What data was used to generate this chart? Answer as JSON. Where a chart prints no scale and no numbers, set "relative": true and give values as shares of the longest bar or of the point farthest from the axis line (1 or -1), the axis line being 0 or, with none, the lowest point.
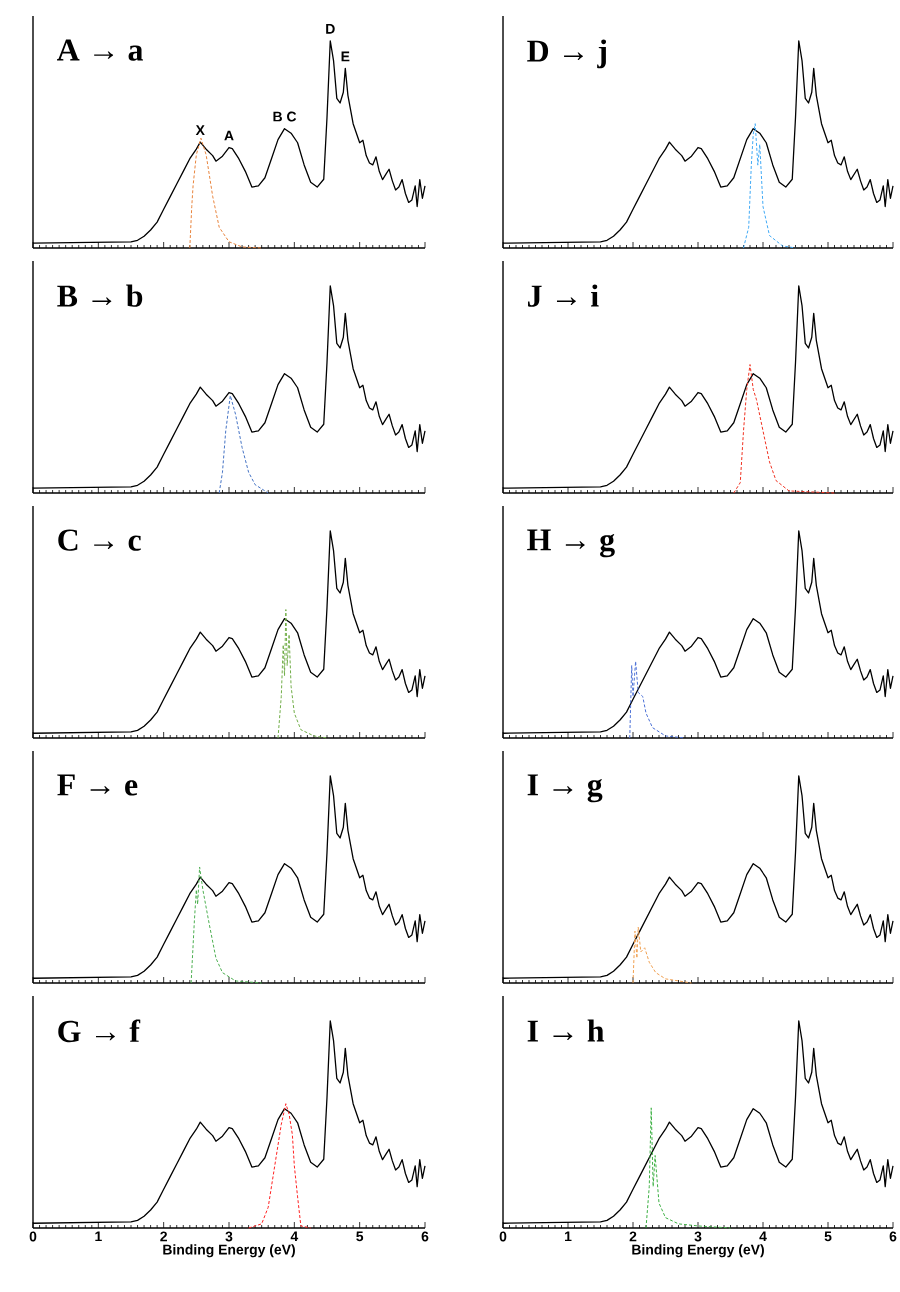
{
  "chart_data": [
    {
      "type": "line",
      "title": "A → a",
      "relative": true,
      "xlim": [
        0,
        6
      ],
      "xticks": [
        0,
        1,
        2,
        3,
        4,
        5,
        6
      ],
      "tick_labels": false,
      "marker": "none",
      "annotations": [
        {
          "text": "X",
          "x": 2.56,
          "y": 0.511
        },
        {
          "text": "A",
          "x": 3.0,
          "y": 0.485
        },
        {
          "text": "B C",
          "x": 3.85,
          "y": 0.576
        },
        {
          "text": "D",
          "x": 4.55,
          "y": 1.0
        },
        {
          "text": "E",
          "x": 4.78,
          "y": 0.867
        }
      ],
      "series": [
        {
          "color": "#000000",
          "line_style": "solid",
          "x": [
            0,
            1.5,
            1.6,
            1.7,
            1.8,
            1.9,
            2.0,
            2.1,
            2.2,
            2.3,
            2.4,
            2.5,
            2.56,
            2.65,
            2.75,
            2.8,
            2.9,
            3.0,
            3.05,
            3.15,
            3.25,
            3.35,
            3.45,
            3.55,
            3.65,
            3.75,
            3.85,
            3.95,
            4.05,
            4.15,
            4.25,
            4.35,
            4.45,
            4.5,
            4.55,
            4.6,
            4.65,
            4.7,
            4.75,
            4.78,
            4.82,
            4.9,
            5.0,
            5.05,
            5.1,
            5.15,
            5.2,
            5.25,
            5.3,
            5.35,
            5.4,
            5.45,
            5.5,
            5.55,
            5.6,
            5.65,
            5.7,
            5.75,
            5.8,
            5.85,
            5.88,
            5.92,
            5.96,
            6.0
          ],
          "values": [
            0.023,
            0.03,
            0.037,
            0.057,
            0.087,
            0.125,
            0.187,
            0.248,
            0.309,
            0.37,
            0.431,
            0.477,
            0.511,
            0.477,
            0.446,
            0.419,
            0.443,
            0.485,
            0.48,
            0.431,
            0.37,
            0.294,
            0.3,
            0.339,
            0.431,
            0.523,
            0.576,
            0.554,
            0.508,
            0.401,
            0.317,
            0.294,
            0.332,
            0.63,
            1.0,
            0.905,
            0.722,
            0.7,
            0.752,
            0.867,
            0.737,
            0.6,
            0.508,
            0.52,
            0.446,
            0.41,
            0.401,
            0.44,
            0.37,
            0.33,
            0.355,
            0.38,
            0.324,
            0.28,
            0.294,
            0.33,
            0.263,
            0.22,
            0.232,
            0.3,
            0.2,
            0.33,
            0.24,
            0.3
          ]
        },
        {
          "color": "#e8843c",
          "line_style": "dashed",
          "x": [
            2.4,
            2.43,
            2.45,
            2.5,
            2.57,
            2.65,
            2.75,
            2.85,
            3.0,
            3.2,
            3.5
          ],
          "values": [
            0,
            0.2,
            0.3,
            0.45,
            0.53,
            0.45,
            0.25,
            0.1,
            0.03,
            0.005,
            0
          ]
        }
      ]
    },
    {
      "type": "line",
      "title": "D → j",
      "relative": true,
      "xlim": [
        0,
        6
      ],
      "xticks": [
        0,
        1,
        2,
        3,
        4,
        5,
        6
      ],
      "tick_labels": false,
      "marker": "none",
      "series": [
        {
          "color": "#000000",
          "line_style": "solid",
          "x": [
            0,
            1.5,
            1.6,
            1.7,
            1.8,
            1.9,
            2.0,
            2.1,
            2.2,
            2.3,
            2.4,
            2.5,
            2.56,
            2.65,
            2.75,
            2.8,
            2.9,
            3.0,
            3.05,
            3.15,
            3.25,
            3.35,
            3.45,
            3.55,
            3.65,
            3.75,
            3.85,
            3.95,
            4.05,
            4.15,
            4.25,
            4.35,
            4.45,
            4.5,
            4.55,
            4.6,
            4.65,
            4.7,
            4.75,
            4.78,
            4.82,
            4.9,
            5.0,
            5.05,
            5.1,
            5.15,
            5.2,
            5.25,
            5.3,
            5.35,
            5.4,
            5.45,
            5.5,
            5.55,
            5.6,
            5.65,
            5.7,
            5.75,
            5.8,
            5.85,
            5.88,
            5.92,
            5.96,
            6.0
          ],
          "values": [
            0.023,
            0.03,
            0.037,
            0.057,
            0.087,
            0.125,
            0.187,
            0.248,
            0.309,
            0.37,
            0.431,
            0.477,
            0.511,
            0.477,
            0.446,
            0.419,
            0.443,
            0.485,
            0.48,
            0.431,
            0.37,
            0.294,
            0.3,
            0.339,
            0.431,
            0.523,
            0.576,
            0.554,
            0.508,
            0.401,
            0.317,
            0.294,
            0.332,
            0.63,
            1.0,
            0.905,
            0.722,
            0.7,
            0.752,
            0.867,
            0.737,
            0.6,
            0.508,
            0.52,
            0.446,
            0.41,
            0.401,
            0.44,
            0.37,
            0.33,
            0.355,
            0.38,
            0.324,
            0.28,
            0.294,
            0.33,
            0.263,
            0.22,
            0.232,
            0.3,
            0.2,
            0.33,
            0.24,
            0.3
          ]
        },
        {
          "color": "#3fa9f5",
          "line_style": "dashed",
          "x": [
            3.7,
            3.78,
            3.82,
            3.85,
            3.88,
            3.92,
            3.95,
            4.0,
            4.1,
            4.3,
            4.5
          ],
          "values": [
            0,
            0.1,
            0.4,
            0.55,
            0.6,
            0.4,
            0.5,
            0.2,
            0.06,
            0.01,
            0
          ]
        }
      ]
    },
    {
      "type": "line",
      "title": "B → b",
      "relative": true,
      "xlim": [
        0,
        6
      ],
      "xticks": [
        0,
        1,
        2,
        3,
        4,
        5,
        6
      ],
      "tick_labels": false,
      "marker": "none",
      "series": [
        {
          "color": "#000000",
          "line_style": "solid",
          "x": [
            0,
            1.5,
            1.6,
            1.7,
            1.8,
            1.9,
            2.0,
            2.1,
            2.2,
            2.3,
            2.4,
            2.5,
            2.56,
            2.65,
            2.75,
            2.8,
            2.9,
            3.0,
            3.05,
            3.15,
            3.25,
            3.35,
            3.45,
            3.55,
            3.65,
            3.75,
            3.85,
            3.95,
            4.05,
            4.15,
            4.25,
            4.35,
            4.45,
            4.5,
            4.55,
            4.6,
            4.65,
            4.7,
            4.75,
            4.78,
            4.82,
            4.9,
            5.0,
            5.05,
            5.1,
            5.15,
            5.2,
            5.25,
            5.3,
            5.35,
            5.4,
            5.45,
            5.5,
            5.55,
            5.6,
            5.65,
            5.7,
            5.75,
            5.8,
            5.85,
            5.88,
            5.92,
            5.96,
            6.0
          ],
          "values": [
            0.023,
            0.03,
            0.037,
            0.057,
            0.087,
            0.125,
            0.187,
            0.248,
            0.309,
            0.37,
            0.431,
            0.477,
            0.511,
            0.477,
            0.446,
            0.419,
            0.443,
            0.485,
            0.48,
            0.431,
            0.37,
            0.294,
            0.3,
            0.339,
            0.431,
            0.523,
            0.576,
            0.554,
            0.508,
            0.401,
            0.317,
            0.294,
            0.332,
            0.63,
            1.0,
            0.905,
            0.722,
            0.7,
            0.752,
            0.867,
            0.737,
            0.6,
            0.508,
            0.52,
            0.446,
            0.41,
            0.401,
            0.44,
            0.37,
            0.33,
            0.355,
            0.38,
            0.324,
            0.28,
            0.294,
            0.33,
            0.263,
            0.22,
            0.232,
            0.3,
            0.2,
            0.33,
            0.24,
            0.3
          ]
        },
        {
          "color": "#4472c4",
          "line_style": "dashed",
          "x": [
            2.85,
            2.9,
            2.95,
            3.02,
            3.1,
            3.2,
            3.3,
            3.4,
            3.6
          ],
          "values": [
            0,
            0.1,
            0.3,
            0.47,
            0.38,
            0.22,
            0.1,
            0.04,
            0
          ]
        }
      ]
    },
    {
      "type": "line",
      "title": "J → i",
      "relative": true,
      "xlim": [
        0,
        6
      ],
      "xticks": [
        0,
        1,
        2,
        3,
        4,
        5,
        6
      ],
      "tick_labels": false,
      "marker": "none",
      "series": [
        {
          "color": "#000000",
          "line_style": "solid",
          "x": [
            0,
            1.5,
            1.6,
            1.7,
            1.8,
            1.9,
            2.0,
            2.1,
            2.2,
            2.3,
            2.4,
            2.5,
            2.56,
            2.65,
            2.75,
            2.8,
            2.9,
            3.0,
            3.05,
            3.15,
            3.25,
            3.35,
            3.45,
            3.55,
            3.65,
            3.75,
            3.85,
            3.95,
            4.05,
            4.15,
            4.25,
            4.35,
            4.45,
            4.5,
            4.55,
            4.6,
            4.65,
            4.7,
            4.75,
            4.78,
            4.82,
            4.9,
            5.0,
            5.05,
            5.1,
            5.15,
            5.2,
            5.25,
            5.3,
            5.35,
            5.4,
            5.45,
            5.5,
            5.55,
            5.6,
            5.65,
            5.7,
            5.75,
            5.8,
            5.85,
            5.88,
            5.92,
            5.96,
            6.0
          ],
          "values": [
            0.023,
            0.03,
            0.037,
            0.057,
            0.087,
            0.125,
            0.187,
            0.248,
            0.309,
            0.37,
            0.431,
            0.477,
            0.511,
            0.477,
            0.446,
            0.419,
            0.443,
            0.485,
            0.48,
            0.431,
            0.37,
            0.294,
            0.3,
            0.339,
            0.431,
            0.523,
            0.576,
            0.554,
            0.508,
            0.401,
            0.317,
            0.294,
            0.332,
            0.63,
            1.0,
            0.905,
            0.722,
            0.7,
            0.752,
            0.867,
            0.737,
            0.6,
            0.508,
            0.52,
            0.446,
            0.41,
            0.401,
            0.44,
            0.37,
            0.33,
            0.355,
            0.38,
            0.324,
            0.28,
            0.294,
            0.33,
            0.263,
            0.22,
            0.232,
            0.3,
            0.2,
            0.33,
            0.24,
            0.3
          ]
        },
        {
          "color": "#f03020",
          "line_style": "dashed",
          "x": [
            3.55,
            3.65,
            3.7,
            3.75,
            3.8,
            3.85,
            3.9,
            4.0,
            4.1,
            4.2,
            4.4,
            5.1
          ],
          "values": [
            0,
            0.05,
            0.3,
            0.5,
            0.62,
            0.5,
            0.45,
            0.3,
            0.15,
            0.06,
            0.01,
            0
          ]
        }
      ]
    },
    {
      "type": "line",
      "title": "C → c",
      "relative": true,
      "xlim": [
        0,
        6
      ],
      "xticks": [
        0,
        1,
        2,
        3,
        4,
        5,
        6
      ],
      "tick_labels": false,
      "marker": "none",
      "series": [
        {
          "color": "#000000",
          "line_style": "solid",
          "x": [
            0,
            1.5,
            1.6,
            1.7,
            1.8,
            1.9,
            2.0,
            2.1,
            2.2,
            2.3,
            2.4,
            2.5,
            2.56,
            2.65,
            2.75,
            2.8,
            2.9,
            3.0,
            3.05,
            3.15,
            3.25,
            3.35,
            3.45,
            3.55,
            3.65,
            3.75,
            3.85,
            3.95,
            4.05,
            4.15,
            4.25,
            4.35,
            4.45,
            4.5,
            4.55,
            4.6,
            4.65,
            4.7,
            4.75,
            4.78,
            4.82,
            4.9,
            5.0,
            5.05,
            5.1,
            5.15,
            5.2,
            5.25,
            5.3,
            5.35,
            5.4,
            5.45,
            5.5,
            5.55,
            5.6,
            5.65,
            5.7,
            5.75,
            5.8,
            5.85,
            5.88,
            5.92,
            5.96,
            6.0
          ],
          "values": [
            0.023,
            0.03,
            0.037,
            0.057,
            0.087,
            0.125,
            0.187,
            0.248,
            0.309,
            0.37,
            0.431,
            0.477,
            0.511,
            0.477,
            0.446,
            0.419,
            0.443,
            0.485,
            0.48,
            0.431,
            0.37,
            0.294,
            0.3,
            0.339,
            0.431,
            0.523,
            0.576,
            0.554,
            0.508,
            0.401,
            0.317,
            0.294,
            0.332,
            0.63,
            1.0,
            0.905,
            0.722,
            0.7,
            0.752,
            0.867,
            0.737,
            0.6,
            0.508,
            0.52,
            0.446,
            0.41,
            0.401,
            0.44,
            0.37,
            0.33,
            0.355,
            0.38,
            0.324,
            0.28,
            0.294,
            0.33,
            0.263,
            0.22,
            0.232,
            0.3,
            0.2,
            0.33,
            0.24,
            0.3
          ]
        },
        {
          "color": "#70ad47",
          "line_style": "dashed",
          "x": [
            3.75,
            3.8,
            3.83,
            3.85,
            3.87,
            3.89,
            3.92,
            3.95,
            4.0,
            4.1,
            4.3,
            4.5
          ],
          "values": [
            0,
            0.2,
            0.45,
            0.3,
            0.62,
            0.35,
            0.5,
            0.25,
            0.12,
            0.04,
            0.01,
            0
          ]
        }
      ]
    },
    {
      "type": "line",
      "title": "H → g",
      "relative": true,
      "xlim": [
        0,
        6
      ],
      "xticks": [
        0,
        1,
        2,
        3,
        4,
        5,
        6
      ],
      "tick_labels": false,
      "marker": "none",
      "series": [
        {
          "color": "#000000",
          "line_style": "solid",
          "x": [
            0,
            1.5,
            1.6,
            1.7,
            1.8,
            1.9,
            2.0,
            2.1,
            2.2,
            2.3,
            2.4,
            2.5,
            2.56,
            2.65,
            2.75,
            2.8,
            2.9,
            3.0,
            3.05,
            3.15,
            3.25,
            3.35,
            3.45,
            3.55,
            3.65,
            3.75,
            3.85,
            3.95,
            4.05,
            4.15,
            4.25,
            4.35,
            4.45,
            4.5,
            4.55,
            4.6,
            4.65,
            4.7,
            4.75,
            4.78,
            4.82,
            4.9,
            5.0,
            5.05,
            5.1,
            5.15,
            5.2,
            5.25,
            5.3,
            5.35,
            5.4,
            5.45,
            5.5,
            5.55,
            5.6,
            5.65,
            5.7,
            5.75,
            5.8,
            5.85,
            5.88,
            5.92,
            5.96,
            6.0
          ],
          "values": [
            0.023,
            0.03,
            0.037,
            0.057,
            0.087,
            0.125,
            0.187,
            0.248,
            0.309,
            0.37,
            0.431,
            0.477,
            0.511,
            0.477,
            0.446,
            0.419,
            0.443,
            0.485,
            0.48,
            0.431,
            0.37,
            0.294,
            0.3,
            0.339,
            0.431,
            0.523,
            0.576,
            0.554,
            0.508,
            0.401,
            0.317,
            0.294,
            0.332,
            0.63,
            1.0,
            0.905,
            0.722,
            0.7,
            0.752,
            0.867,
            0.737,
            0.6,
            0.508,
            0.52,
            0.446,
            0.41,
            0.401,
            0.44,
            0.37,
            0.33,
            0.355,
            0.38,
            0.324,
            0.28,
            0.294,
            0.33,
            0.263,
            0.22,
            0.232,
            0.3,
            0.2,
            0.33,
            0.24,
            0.3
          ]
        },
        {
          "color": "#4a6fd6",
          "line_style": "dashed",
          "x": [
            1.95,
            1.98,
            2.0,
            2.04,
            2.08,
            2.15,
            2.2,
            2.3,
            2.5,
            2.8
          ],
          "values": [
            0,
            0.35,
            0.2,
            0.37,
            0.22,
            0.2,
            0.12,
            0.05,
            0.01,
            0
          ]
        }
      ]
    },
    {
      "type": "line",
      "title": "F → e",
      "relative": true,
      "xlim": [
        0,
        6
      ],
      "xticks": [
        0,
        1,
        2,
        3,
        4,
        5,
        6
      ],
      "tick_labels": false,
      "marker": "none",
      "series": [
        {
          "color": "#000000",
          "line_style": "solid",
          "x": [
            0,
            1.5,
            1.6,
            1.7,
            1.8,
            1.9,
            2.0,
            2.1,
            2.2,
            2.3,
            2.4,
            2.5,
            2.56,
            2.65,
            2.75,
            2.8,
            2.9,
            3.0,
            3.05,
            3.15,
            3.25,
            3.35,
            3.45,
            3.55,
            3.65,
            3.75,
            3.85,
            3.95,
            4.05,
            4.15,
            4.25,
            4.35,
            4.45,
            4.5,
            4.55,
            4.6,
            4.65,
            4.7,
            4.75,
            4.78,
            4.82,
            4.9,
            5.0,
            5.05,
            5.1,
            5.15,
            5.2,
            5.25,
            5.3,
            5.35,
            5.4,
            5.45,
            5.5,
            5.55,
            5.6,
            5.65,
            5.7,
            5.75,
            5.8,
            5.85,
            5.88,
            5.92,
            5.96,
            6.0
          ],
          "values": [
            0.023,
            0.03,
            0.037,
            0.057,
            0.087,
            0.125,
            0.187,
            0.248,
            0.309,
            0.37,
            0.431,
            0.477,
            0.511,
            0.477,
            0.446,
            0.419,
            0.443,
            0.485,
            0.48,
            0.431,
            0.37,
            0.294,
            0.3,
            0.339,
            0.431,
            0.523,
            0.576,
            0.554,
            0.508,
            0.401,
            0.317,
            0.294,
            0.332,
            0.63,
            1.0,
            0.905,
            0.722,
            0.7,
            0.752,
            0.867,
            0.737,
            0.6,
            0.508,
            0.52,
            0.446,
            0.41,
            0.401,
            0.44,
            0.37,
            0.33,
            0.355,
            0.38,
            0.324,
            0.28,
            0.294,
            0.33,
            0.263,
            0.22,
            0.232,
            0.3,
            0.2,
            0.33,
            0.24,
            0.3
          ]
        },
        {
          "color": "#4caf50",
          "line_style": "dashed",
          "x": [
            2.42,
            2.47,
            2.5,
            2.52,
            2.55,
            2.6,
            2.7,
            2.8,
            2.9,
            3.1,
            3.5
          ],
          "values": [
            0,
            0.3,
            0.45,
            0.38,
            0.56,
            0.45,
            0.28,
            0.12,
            0.05,
            0.01,
            0
          ]
        }
      ]
    },
    {
      "type": "line",
      "title": "I → g",
      "relative": true,
      "xlim": [
        0,
        6
      ],
      "xticks": [
        0,
        1,
        2,
        3,
        4,
        5,
        6
      ],
      "tick_labels": false,
      "marker": "none",
      "series": [
        {
          "color": "#000000",
          "line_style": "solid",
          "x": [
            0,
            1.5,
            1.6,
            1.7,
            1.8,
            1.9,
            2.0,
            2.1,
            2.2,
            2.3,
            2.4,
            2.5,
            2.56,
            2.65,
            2.75,
            2.8,
            2.9,
            3.0,
            3.05,
            3.15,
            3.25,
            3.35,
            3.45,
            3.55,
            3.65,
            3.75,
            3.85,
            3.95,
            4.05,
            4.15,
            4.25,
            4.35,
            4.45,
            4.5,
            4.55,
            4.6,
            4.65,
            4.7,
            4.75,
            4.78,
            4.82,
            4.9,
            5.0,
            5.05,
            5.1,
            5.15,
            5.2,
            5.25,
            5.3,
            5.35,
            5.4,
            5.45,
            5.5,
            5.55,
            5.6,
            5.65,
            5.7,
            5.75,
            5.8,
            5.85,
            5.88,
            5.92,
            5.96,
            6.0
          ],
          "values": [
            0.023,
            0.03,
            0.037,
            0.057,
            0.087,
            0.125,
            0.187,
            0.248,
            0.309,
            0.37,
            0.431,
            0.477,
            0.511,
            0.477,
            0.446,
            0.419,
            0.443,
            0.485,
            0.48,
            0.431,
            0.37,
            0.294,
            0.3,
            0.339,
            0.431,
            0.523,
            0.576,
            0.554,
            0.508,
            0.401,
            0.317,
            0.294,
            0.332,
            0.63,
            1.0,
            0.905,
            0.722,
            0.7,
            0.752,
            0.867,
            0.737,
            0.6,
            0.508,
            0.52,
            0.446,
            0.41,
            0.401,
            0.44,
            0.37,
            0.33,
            0.355,
            0.38,
            0.324,
            0.28,
            0.294,
            0.33,
            0.263,
            0.22,
            0.232,
            0.3,
            0.2,
            0.33,
            0.24,
            0.3
          ]
        },
        {
          "color": "#f0a050",
          "line_style": "dashed",
          "x": [
            2.0,
            2.03,
            2.06,
            2.08,
            2.12,
            2.18,
            2.25,
            2.35,
            2.5,
            2.9
          ],
          "values": [
            0,
            0.25,
            0.12,
            0.27,
            0.15,
            0.17,
            0.1,
            0.05,
            0.02,
            0
          ]
        }
      ]
    },
    {
      "type": "line",
      "title": "G → f",
      "relative": true,
      "xlim": [
        0,
        6
      ],
      "xticks": [
        0,
        1,
        2,
        3,
        4,
        5,
        6
      ],
      "tick_labels": "x",
      "marker": "none",
      "xlabel": "Binding Energy (eV)",
      "series": [
        {
          "color": "#000000",
          "line_style": "solid",
          "x": [
            0,
            1.5,
            1.6,
            1.7,
            1.8,
            1.9,
            2.0,
            2.1,
            2.2,
            2.3,
            2.4,
            2.5,
            2.56,
            2.65,
            2.75,
            2.8,
            2.9,
            3.0,
            3.05,
            3.15,
            3.25,
            3.35,
            3.45,
            3.55,
            3.65,
            3.75,
            3.85,
            3.95,
            4.05,
            4.15,
            4.25,
            4.35,
            4.45,
            4.5,
            4.55,
            4.6,
            4.65,
            4.7,
            4.75,
            4.78,
            4.82,
            4.9,
            5.0,
            5.05,
            5.1,
            5.15,
            5.2,
            5.25,
            5.3,
            5.35,
            5.4,
            5.45,
            5.5,
            5.55,
            5.6,
            5.65,
            5.7,
            5.75,
            5.8,
            5.85,
            5.88,
            5.92,
            5.96,
            6.0
          ],
          "values": [
            0.023,
            0.03,
            0.037,
            0.057,
            0.087,
            0.125,
            0.187,
            0.248,
            0.309,
            0.37,
            0.431,
            0.477,
            0.511,
            0.477,
            0.446,
            0.419,
            0.443,
            0.485,
            0.48,
            0.431,
            0.37,
            0.294,
            0.3,
            0.339,
            0.431,
            0.523,
            0.576,
            0.554,
            0.508,
            0.401,
            0.317,
            0.294,
            0.332,
            0.63,
            1.0,
            0.905,
            0.722,
            0.7,
            0.752,
            0.867,
            0.737,
            0.6,
            0.508,
            0.52,
            0.446,
            0.41,
            0.401,
            0.44,
            0.37,
            0.33,
            0.355,
            0.38,
            0.324,
            0.28,
            0.294,
            0.33,
            0.263,
            0.22,
            0.232,
            0.3,
            0.2,
            0.33,
            0.24,
            0.3
          ]
        },
        {
          "color": "#ff2020",
          "line_style": "dashed",
          "x": [
            3.3,
            3.5,
            3.6,
            3.7,
            3.8,
            3.87,
            3.92,
            3.97,
            4.0,
            4.05,
            4.1,
            4.25
          ],
          "values": [
            0,
            0.02,
            0.1,
            0.3,
            0.5,
            0.6,
            0.55,
            0.45,
            0.3,
            0.15,
            0.01,
            0
          ]
        }
      ]
    },
    {
      "type": "line",
      "title": "I → h",
      "relative": true,
      "xlim": [
        0,
        6
      ],
      "xticks": [
        0,
        1,
        2,
        3,
        4,
        5,
        6
      ],
      "tick_labels": "x",
      "marker": "none",
      "xlabel": "Binding Energy (eV)",
      "series": [
        {
          "color": "#000000",
          "line_style": "solid",
          "x": [
            0,
            1.5,
            1.6,
            1.7,
            1.8,
            1.9,
            2.0,
            2.1,
            2.2,
            2.3,
            2.4,
            2.5,
            2.56,
            2.65,
            2.75,
            2.8,
            2.9,
            3.0,
            3.05,
            3.15,
            3.25,
            3.35,
            3.45,
            3.55,
            3.65,
            3.75,
            3.85,
            3.95,
            4.05,
            4.15,
            4.25,
            4.35,
            4.45,
            4.5,
            4.55,
            4.6,
            4.65,
            4.7,
            4.75,
            4.78,
            4.82,
            4.9,
            5.0,
            5.05,
            5.1,
            5.15,
            5.2,
            5.25,
            5.3,
            5.35,
            5.4,
            5.45,
            5.5,
            5.55,
            5.6,
            5.65,
            5.7,
            5.75,
            5.8,
            5.85,
            5.88,
            5.92,
            5.96,
            6.0
          ],
          "values": [
            0.023,
            0.03,
            0.037,
            0.057,
            0.087,
            0.125,
            0.187,
            0.248,
            0.309,
            0.37,
            0.431,
            0.477,
            0.511,
            0.477,
            0.446,
            0.419,
            0.443,
            0.485,
            0.48,
            0.431,
            0.37,
            0.294,
            0.3,
            0.339,
            0.431,
            0.523,
            0.576,
            0.554,
            0.508,
            0.401,
            0.317,
            0.294,
            0.332,
            0.63,
            1.0,
            0.905,
            0.722,
            0.7,
            0.752,
            0.867,
            0.737,
            0.6,
            0.508,
            0.52,
            0.446,
            0.41,
            0.401,
            0.44,
            0.37,
            0.33,
            0.355,
            0.38,
            0.324,
            0.28,
            0.294,
            0.33,
            0.263,
            0.22,
            0.232,
            0.3,
            0.2,
            0.33,
            0.24,
            0.3
          ]
        },
        {
          "color": "#3cb043",
          "line_style": "dashed",
          "x": [
            2.2,
            2.25,
            2.28,
            2.31,
            2.34,
            2.4,
            2.5,
            2.7,
            3.0,
            3.5
          ],
          "values": [
            0,
            0.2,
            0.58,
            0.2,
            0.35,
            0.12,
            0.05,
            0.02,
            0.01,
            0
          ]
        }
      ]
    }
  ]
}
